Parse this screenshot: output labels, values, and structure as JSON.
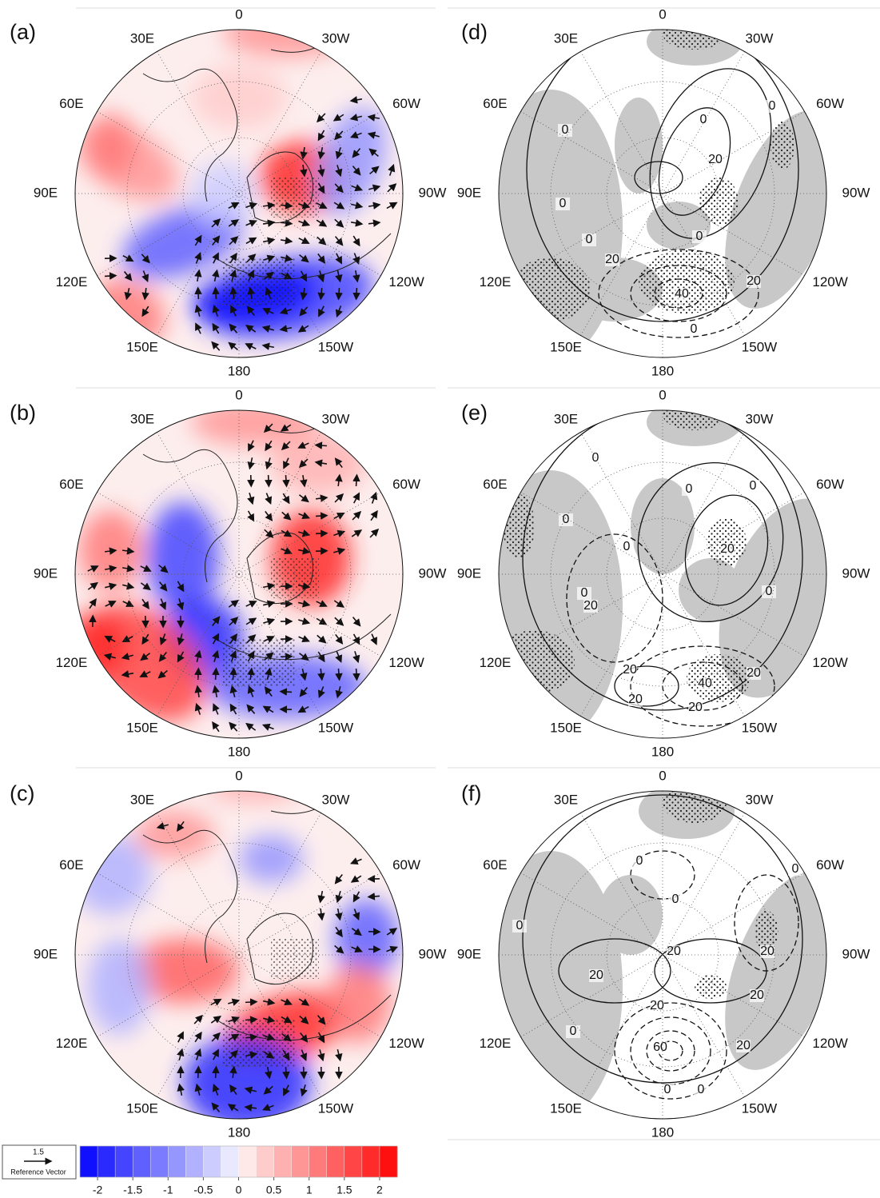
{
  "panels": [
    {
      "label": "(a)",
      "lon_labels": [
        "0",
        "30W",
        "60W",
        "90W",
        "120W",
        "150W",
        "180",
        "150E",
        "120E",
        "90E",
        "60E",
        "30E"
      ]
    },
    {
      "label": "(b)",
      "lon_labels": [
        "0",
        "30W",
        "60W",
        "90W",
        "120W",
        "150W",
        "180",
        "150E",
        "120E",
        "90E",
        "60E",
        "30E"
      ]
    },
    {
      "label": "(c)",
      "lon_labels": [
        "0",
        "30W",
        "60W",
        "90W",
        "120W",
        "150W",
        "180",
        "150E",
        "120E",
        "90E",
        "60E",
        "30E"
      ]
    },
    {
      "label": "(d)",
      "lon_labels": [
        "0",
        "30W",
        "60W",
        "90W",
        "120W",
        "150W",
        "180",
        "150E",
        "120E",
        "90E",
        "60E",
        "30E"
      ],
      "contour_labels": [
        0,
        0,
        0,
        0,
        0,
        0,
        0,
        20,
        20,
        40,
        20
      ]
    },
    {
      "label": "(e)",
      "lon_labels": [
        "0",
        "30W",
        "60W",
        "90W",
        "120W",
        "150W",
        "180",
        "150E",
        "120E",
        "90E",
        "60E",
        "30E"
      ],
      "contour_labels": [
        0,
        0,
        0,
        0,
        0,
        0,
        0,
        20,
        20,
        20,
        40,
        20,
        20,
        20
      ]
    },
    {
      "label": "(f)",
      "lon_labels": [
        "0",
        "30W",
        "60W",
        "90W",
        "120W",
        "150W",
        "180",
        "150E",
        "120E",
        "90E",
        "60E",
        "30E"
      ],
      "contour_labels": [
        0,
        0,
        0,
        0,
        0,
        0,
        0,
        20,
        20,
        20,
        20,
        20,
        20,
        60
      ]
    }
  ],
  "colorbar": {
    "ticks": [
      -2,
      -1.5,
      -1,
      -0.5,
      0,
      0.5,
      1,
      1.5,
      2
    ],
    "lim": [
      -2.25,
      2.25
    ],
    "colors": [
      "#1010ff",
      "#2a2aff",
      "#4545ff",
      "#6060ff",
      "#7b7bff",
      "#9696ff",
      "#b1b1ff",
      "#ccccff",
      "#e8e8ff",
      "#ffe8e8",
      "#ffcccc",
      "#ffb1b1",
      "#ff9696",
      "#ff7b7b",
      "#ff6060",
      "#ff4545",
      "#ff2a2a",
      "#ff1010"
    ]
  },
  "reference_vector": {
    "value": 1.5,
    "label": "Reference Vector"
  }
}
